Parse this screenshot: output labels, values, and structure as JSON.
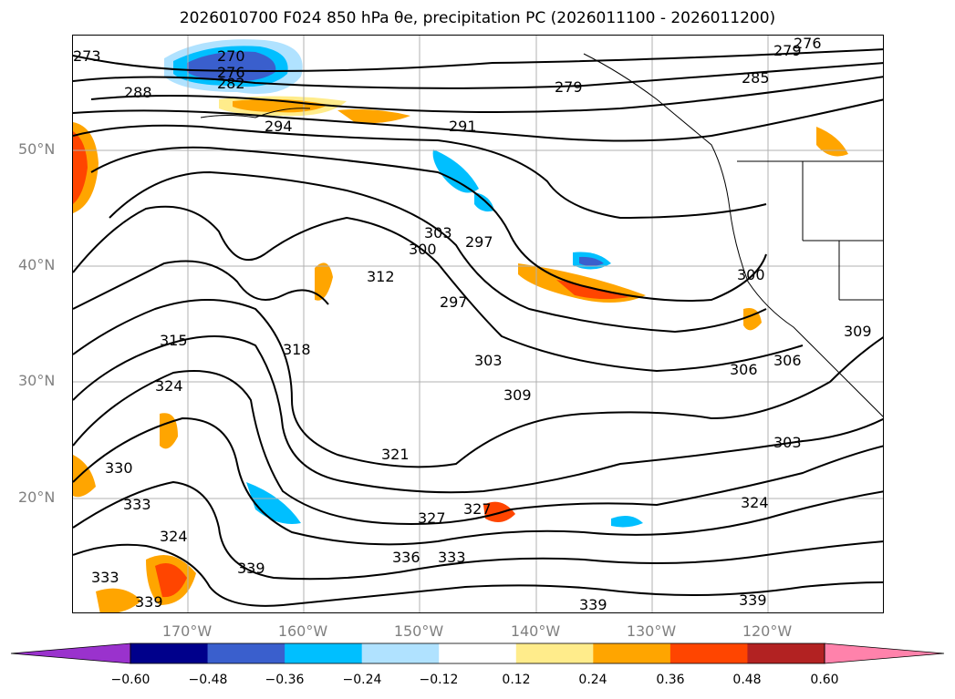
{
  "title": "2026010700 F024 850 hPa θe, precipitation PC (2026011100 - 2026011200)",
  "map": {
    "lat_labels": [
      "50°N",
      "40°N",
      "30°N",
      "20°N"
    ],
    "lon_labels": [
      "170°W",
      "160°W",
      "150°W",
      "140°W",
      "130°W",
      "120°W"
    ],
    "contour_labels": [
      "273",
      "276",
      "279",
      "285",
      "270",
      "276",
      "282",
      "288",
      "291",
      "294",
      "297",
      "300",
      "303",
      "306",
      "309",
      "312",
      "315",
      "318",
      "321",
      "324",
      "327",
      "330",
      "333",
      "336",
      "339"
    ],
    "colors": {
      "contour": "#000000",
      "coast": "#000000",
      "grid": "#b0b0b0",
      "tick_label": "#808080"
    }
  },
  "colorbar": {
    "colors": [
      "#9a32cd",
      "#00008b",
      "#3a5fcd",
      "#00bfff",
      "#b0e2ff",
      "#ffffff",
      "#ffec8b",
      "#ffa500",
      "#ff4500",
      "#b22222",
      "#ff82ab"
    ],
    "ticks": [
      "−0.60",
      "−0.48",
      "−0.36",
      "−0.24",
      "−0.12",
      "0.12",
      "0.24",
      "0.36",
      "0.48",
      "0.60"
    ],
    "extend": "both"
  }
}
